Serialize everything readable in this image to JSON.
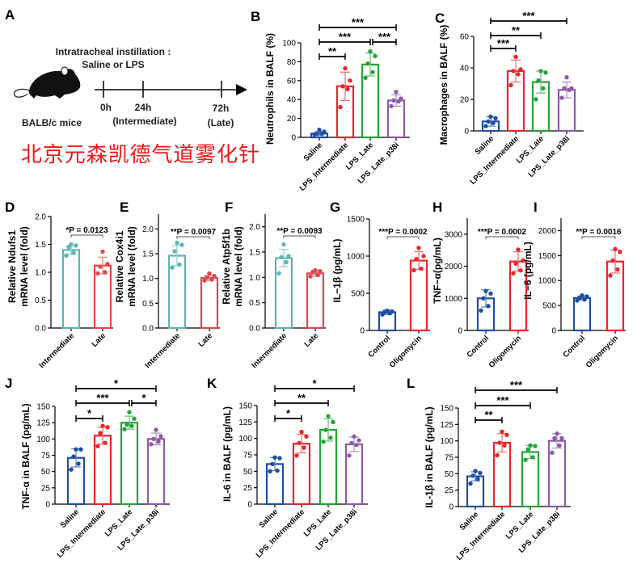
{
  "panel_a": {
    "letter": "A",
    "title_line1": "Intratracheal instillation :",
    "title_line2": "Saline or LPS",
    "mouse_label": "BALB/c mice",
    "timepoints": [
      {
        "time": "0h",
        "note": ""
      },
      {
        "time": "24h",
        "note": "(Intermediate)"
      },
      {
        "time": "72h",
        "note": "(Late)"
      }
    ],
    "overlay_text": "北京元森凯德气道雾化针"
  },
  "chart_data": [
    {
      "id": "B",
      "type": "bar",
      "letter": "B",
      "ylabel": [
        "Neutrophils in BALF (%)"
      ],
      "yticks": [
        "0",
        "20",
        "40",
        "60",
        "80",
        "100"
      ],
      "ylim": [
        0,
        100
      ],
      "categories": [
        "Saline",
        "LPS_Intermediate",
        "LPS_Late",
        "LPS_Late_p38i"
      ],
      "colors": [
        "#1f4ea3",
        "#e8262b",
        "#27a33a",
        "#8e5aa8"
      ],
      "means": [
        4,
        54,
        77,
        39
      ],
      "sd": [
        2,
        15,
        12,
        6
      ],
      "points": [
        [
          3,
          4,
          4,
          6,
          8
        ],
        [
          32,
          51,
          54,
          60,
          73
        ],
        [
          63,
          69,
          78,
          86,
          91
        ],
        [
          33,
          38,
          39,
          41,
          48
        ]
      ],
      "comparisons": [
        {
          "a": 0,
          "b": 1,
          "label": "**"
        },
        {
          "a": 0,
          "b": 2,
          "label": "***"
        },
        {
          "a": 2,
          "b": 3,
          "label": "***"
        },
        {
          "a": 0,
          "b": 3,
          "label": "***"
        }
      ]
    },
    {
      "id": "C",
      "type": "bar",
      "letter": "C",
      "ylabel": [
        "Macrophages in BALF (%)"
      ],
      "yticks": [
        "0",
        "20",
        "40",
        "60"
      ],
      "ylim": [
        0,
        60
      ],
      "categories": [
        "Saline",
        "LPS_Intermediate",
        "LPS_Late",
        "LPS_Late_p38i"
      ],
      "colors": [
        "#1f4ea3",
        "#e8262b",
        "#27a33a",
        "#8e5aa8"
      ],
      "means": [
        6,
        38,
        31,
        26
      ],
      "sd": [
        3,
        7,
        7,
        5
      ],
      "points": [
        [
          3,
          5,
          6,
          8,
          9
        ],
        [
          29,
          36,
          38,
          39,
          47
        ],
        [
          20,
          27,
          32,
          37,
          38
        ],
        [
          21,
          26,
          27,
          27,
          34
        ]
      ],
      "comparisons": [
        {
          "a": 0,
          "b": 1,
          "label": "***"
        },
        {
          "a": 0,
          "b": 2,
          "label": "**"
        },
        {
          "a": 0,
          "b": 3,
          "label": "***"
        }
      ]
    },
    {
      "id": "D",
      "type": "bar",
      "letter": "D",
      "ylabel": [
        "Relative Ndufs1",
        "mRNA level (fold)"
      ],
      "yticks": [
        "0.0",
        "0.5",
        "1.0",
        "1.5",
        "2.0"
      ],
      "ylim": [
        0,
        2.0
      ],
      "categories": [
        "Intermediate",
        "Late"
      ],
      "colors": [
        "#5db5b5",
        "#e0474c"
      ],
      "means": [
        1.4,
        1.12
      ],
      "sd": [
        0.08,
        0.15
      ],
      "points": [
        [
          1.3,
          1.35,
          1.45,
          1.48,
          1.5
        ],
        [
          0.98,
          1.0,
          1.1,
          1.15,
          1.37
        ]
      ],
      "pvalue": "*P = 0.0123"
    },
    {
      "id": "E",
      "type": "bar",
      "letter": "E",
      "ylabel": [
        "Relative Cox4i1",
        "mRNA level (fold)"
      ],
      "yticks": [
        "0.0",
        "0.5",
        "1.0",
        "1.5",
        "2.0"
      ],
      "ylim": [
        0,
        2.3
      ],
      "categories": [
        "Intermediate",
        "Late"
      ],
      "colors": [
        "#5db5b5",
        "#e0474c"
      ],
      "means": [
        1.46,
        1.01
      ],
      "sd": [
        0.2,
        0.05
      ],
      "points": [
        [
          1.22,
          1.28,
          1.55,
          1.68,
          1.72
        ],
        [
          0.96,
          0.98,
          1.02,
          1.05,
          1.1
        ]
      ],
      "pvalue": "**P = 0.0097"
    },
    {
      "id": "F",
      "type": "bar",
      "letter": "F",
      "ylabel": [
        "Relative Atp5f1b",
        "mRNA level (fold)"
      ],
      "yticks": [
        "0.0",
        "0.5",
        "1.0",
        "1.5",
        "2.0"
      ],
      "ylim": [
        0,
        2.25
      ],
      "categories": [
        "Intermediate",
        "Late"
      ],
      "colors": [
        "#5db5b5",
        "#e0474c"
      ],
      "means": [
        1.38,
        1.08
      ],
      "sd": [
        0.17,
        0.06
      ],
      "points": [
        [
          1.08,
          1.3,
          1.4,
          1.42,
          1.65
        ],
        [
          1.02,
          1.05,
          1.1,
          1.12,
          1.14
        ]
      ],
      "pvalue": "**P = 0.0093"
    },
    {
      "id": "G",
      "type": "bar",
      "letter": "G",
      "ylabel": [
        "IL−1β (pg/mL)"
      ],
      "yticks": [
        "0",
        "500",
        "1000",
        "1500"
      ],
      "ylim": [
        0,
        1500
      ],
      "categories": [
        "Control",
        "Oligomycin"
      ],
      "colors": [
        "#1f4ea3",
        "#e8262b"
      ],
      "means": [
        245,
        940
      ],
      "sd": [
        30,
        120
      ],
      "points": [
        [
          215,
          230,
          245,
          255,
          265
        ],
        [
          810,
          830,
          960,
          1000,
          1110
        ]
      ],
      "pvalue": "***P = 0.0002"
    },
    {
      "id": "H",
      "type": "bar",
      "letter": "H",
      "ylabel": [
        "TNF−α(pg/mL)"
      ],
      "yticks": [
        "0",
        "1000",
        "2000",
        "3000"
      ],
      "ylim": [
        0,
        3500
      ],
      "categories": [
        "Control",
        "Oligomycin"
      ],
      "colors": [
        "#1f4ea3",
        "#e8262b"
      ],
      "means": [
        1000,
        2150
      ],
      "sd": [
        270,
        300
      ],
      "points": [
        [
          620,
          760,
          1000,
          1150,
          1230
        ],
        [
          1780,
          1870,
          2080,
          2180,
          2520
        ]
      ],
      "pvalue": "***P = 0.0002"
    },
    {
      "id": "I",
      "type": "bar",
      "letter": "I",
      "ylabel": [
        "IL−6 (pg/mL)"
      ],
      "yticks": [
        "0",
        "500",
        "1000",
        "1500",
        "2000"
      ],
      "ylim": [
        0,
        2250
      ],
      "categories": [
        "Control",
        "Oligomycin"
      ],
      "colors": [
        "#1f4ea3",
        "#e8262b"
      ],
      "means": [
        650,
        1380
      ],
      "sd": [
        40,
        230
      ],
      "points": [
        [
          600,
          620,
          650,
          680,
          700
        ],
        [
          1100,
          1220,
          1400,
          1570,
          1630
        ]
      ],
      "pvalue": "**P = 0.0016"
    },
    {
      "id": "J",
      "type": "bar",
      "letter": "J",
      "ylabel": [
        "TNF-α in BALF (pg/mL)"
      ],
      "yticks": [
        "0",
        "25",
        "50",
        "75",
        "100",
        "125",
        "150"
      ],
      "ylim": [
        0,
        150
      ],
      "categories": [
        "Saline",
        "LPS_Intermediate",
        "LPS_Late",
        "LPS_Late_p38i"
      ],
      "colors": [
        "#1f4ea3",
        "#e8262b",
        "#27a33a",
        "#8e5aa8"
      ],
      "means": [
        71,
        105,
        125,
        100
      ],
      "sd": [
        14,
        13,
        10,
        9
      ],
      "points": [
        [
          53,
          62,
          73,
          84,
          84
        ],
        [
          89,
          94,
          109,
          118,
          120
        ],
        [
          115,
          120,
          122,
          131,
          141
        ],
        [
          92,
          96,
          100,
          104,
          114
        ]
      ],
      "comparisons": [
        {
          "a": 0,
          "b": 1,
          "label": "*"
        },
        {
          "a": 0,
          "b": 2,
          "label": "***"
        },
        {
          "a": 2,
          "b": 3,
          "label": "*"
        },
        {
          "a": 0,
          "b": 3,
          "label": "*"
        }
      ]
    },
    {
      "id": "K",
      "type": "bar",
      "letter": "K",
      "ylabel": [
        "IL-6 in BALF (pg/mL)"
      ],
      "yticks": [
        "0",
        "25",
        "50",
        "75",
        "100",
        "125",
        "150"
      ],
      "ylim": [
        0,
        150
      ],
      "categories": [
        "Saline",
        "LPS_Intermediate",
        "LPS_Late",
        "LPS_Late_p38i"
      ],
      "colors": [
        "#1f4ea3",
        "#e8262b",
        "#27a33a",
        "#8e5aa8"
      ],
      "means": [
        61,
        92,
        113,
        91
      ],
      "sd": [
        10,
        14,
        17,
        11
      ],
      "points": [
        [
          50,
          51,
          61,
          70,
          71
        ],
        [
          74,
          86,
          93,
          103,
          110
        ],
        [
          95,
          101,
          113,
          125,
          134
        ],
        [
          74,
          90,
          93,
          97,
          103
        ]
      ],
      "comparisons": [
        {
          "a": 0,
          "b": 1,
          "label": "*"
        },
        {
          "a": 0,
          "b": 2,
          "label": "**"
        },
        {
          "a": 0,
          "b": 3,
          "label": "*"
        }
      ]
    },
    {
      "id": "L",
      "type": "bar",
      "letter": "L",
      "ylabel": [
        "IL-1β in BALF (pg/mL)"
      ],
      "yticks": [
        "0",
        "25",
        "50",
        "75",
        "100",
        "125",
        "150"
      ],
      "ylim": [
        0,
        150
      ],
      "categories": [
        "Saline",
        "LPS_Intermediate",
        "LPS_Late",
        "LPS_Late_p38i"
      ],
      "colors": [
        "#1f4ea3",
        "#e8262b",
        "#27a33a",
        "#8e5aa8"
      ],
      "means": [
        46,
        97,
        83,
        100
      ],
      "sd": [
        7,
        14,
        10,
        11
      ],
      "points": [
        [
          35,
          42,
          47,
          51,
          54
        ],
        [
          78,
          93,
          97,
          109,
          114
        ],
        [
          71,
          75,
          87,
          92,
          93
        ],
        [
          82,
          93,
          104,
          104,
          111
        ]
      ],
      "comparisons": [
        {
          "a": 0,
          "b": 1,
          "label": "**"
        },
        {
          "a": 0,
          "b": 2,
          "label": "***"
        },
        {
          "a": 0,
          "b": 3,
          "label": "***"
        }
      ]
    }
  ]
}
